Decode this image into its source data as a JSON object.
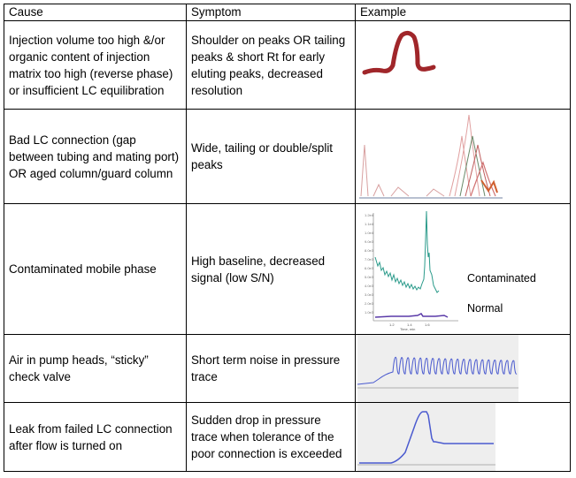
{
  "headers": {
    "cause": "Cause",
    "symptom": "Symptom",
    "example": "Example"
  },
  "rows": [
    {
      "cause": "Injection volume too high &/or organic content of injection matrix too high (reverse phase) or insufficient LC equilibration",
      "symptom": "Shoulder on peaks OR tailing peaks & short Rt for early eluting peaks, decreased resolution"
    },
    {
      "cause": "Bad LC connection (gap between tubing and mating port) OR aged column/guard column",
      "symptom": "Wide, tailing or double/split peaks"
    },
    {
      "cause": "Contaminated mobile phase",
      "symptom": "High baseline, decreased signal (low S/N)",
      "legend_contaminated": "Contaminated",
      "legend_normal": "Normal"
    },
    {
      "cause": "Air in pump heads, “sticky” check valve",
      "symptom": "Short term noise in pressure trace"
    },
    {
      "cause": "Leak from failed LC connection after flow is turned on",
      "symptom": "Sudden drop in pressure trace when tolerance of the poor connection is exceeded"
    }
  ],
  "colors": {
    "peak_sketch": "#a0262a",
    "contaminated_trace": "#2a9a8a",
    "normal_trace": "#5a3aa8",
    "pressure_trace": "#4a5acf"
  }
}
